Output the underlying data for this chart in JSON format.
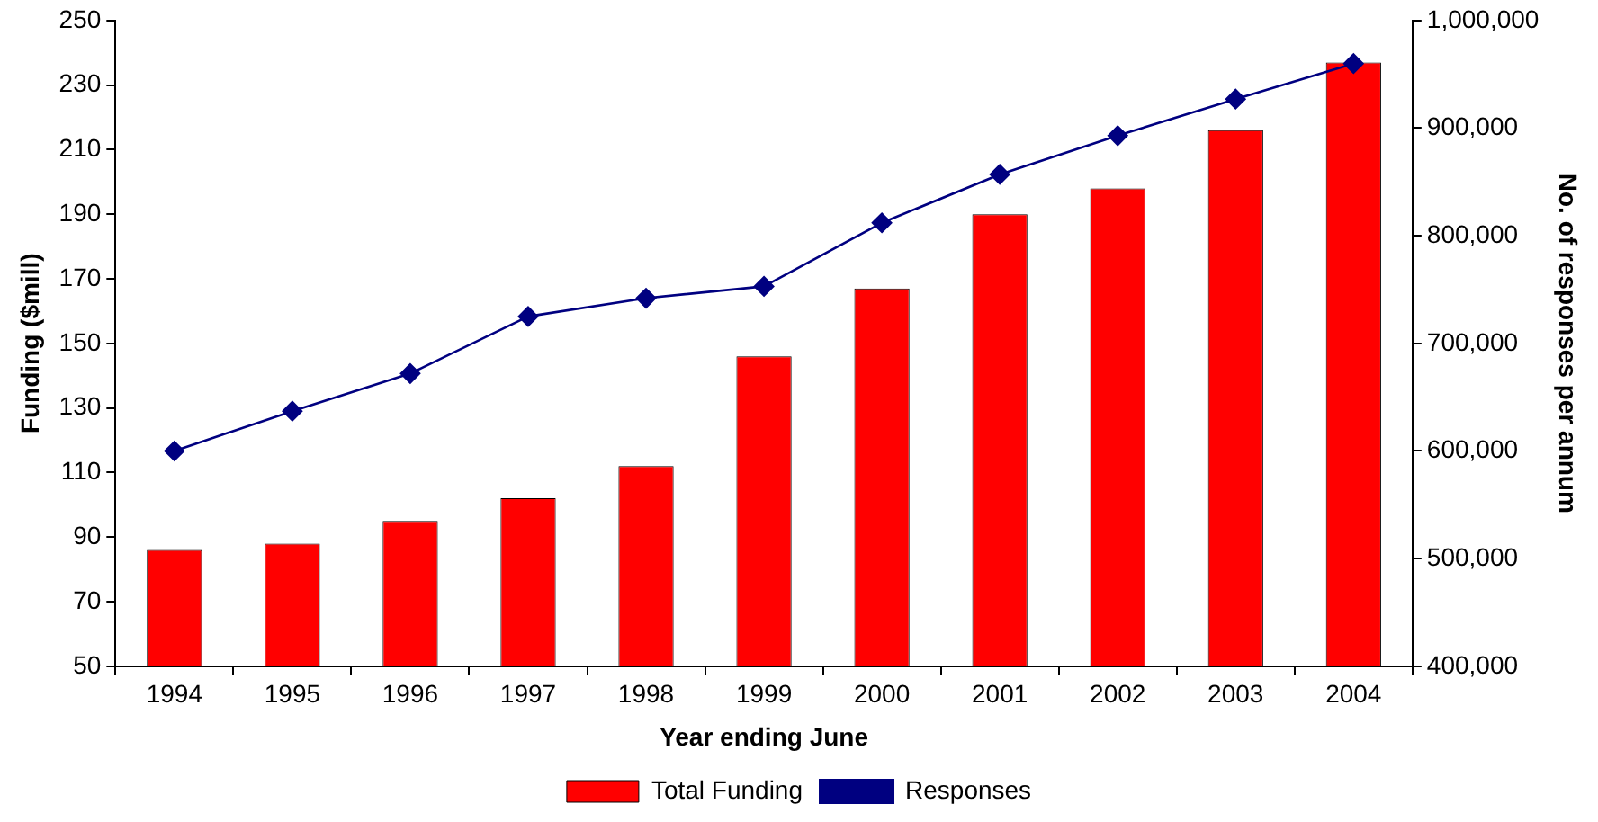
{
  "chart_data": {
    "type": "bar",
    "xlabel": "Year ending June",
    "ylabel": "Funding ($mill)",
    "y2label": "No. of responses per annum",
    "categories": [
      "1994",
      "1995",
      "1996",
      "1997",
      "1998",
      "1999",
      "2000",
      "2001",
      "2002",
      "2003",
      "2004"
    ],
    "series": [
      {
        "name": "Total Funding",
        "color": "#ff0000",
        "values": [
          86,
          88,
          95,
          102,
          112,
          146,
          167,
          190,
          198,
          216,
          237
        ]
      },
      {
        "name": "Responses",
        "type": "line",
        "axis": "y2",
        "color": "#000080",
        "values": [
          600000,
          637000,
          672000,
          725000,
          742000,
          753000,
          812000,
          857000,
          893000,
          927000,
          960000
        ]
      }
    ],
    "ylim": [
      50,
      250
    ],
    "yticks": [
      50,
      70,
      90,
      110,
      130,
      150,
      170,
      190,
      210,
      230,
      250
    ],
    "y2lim": [
      400000,
      1000000
    ],
    "y2ticks": [
      {
        "value": 400000,
        "label": "400,000"
      },
      {
        "value": 500000,
        "label": "500,000"
      },
      {
        "value": 600000,
        "label": "600,000"
      },
      {
        "value": 700000,
        "label": "700,000"
      },
      {
        "value": 800000,
        "label": "800,000"
      },
      {
        "value": 900000,
        "label": "900,000"
      },
      {
        "value": 1000000,
        "label": "1,000,000"
      }
    ],
    "grid": false,
    "legend": "bottom",
    "marker": "diamond",
    "line_style": "solid"
  }
}
